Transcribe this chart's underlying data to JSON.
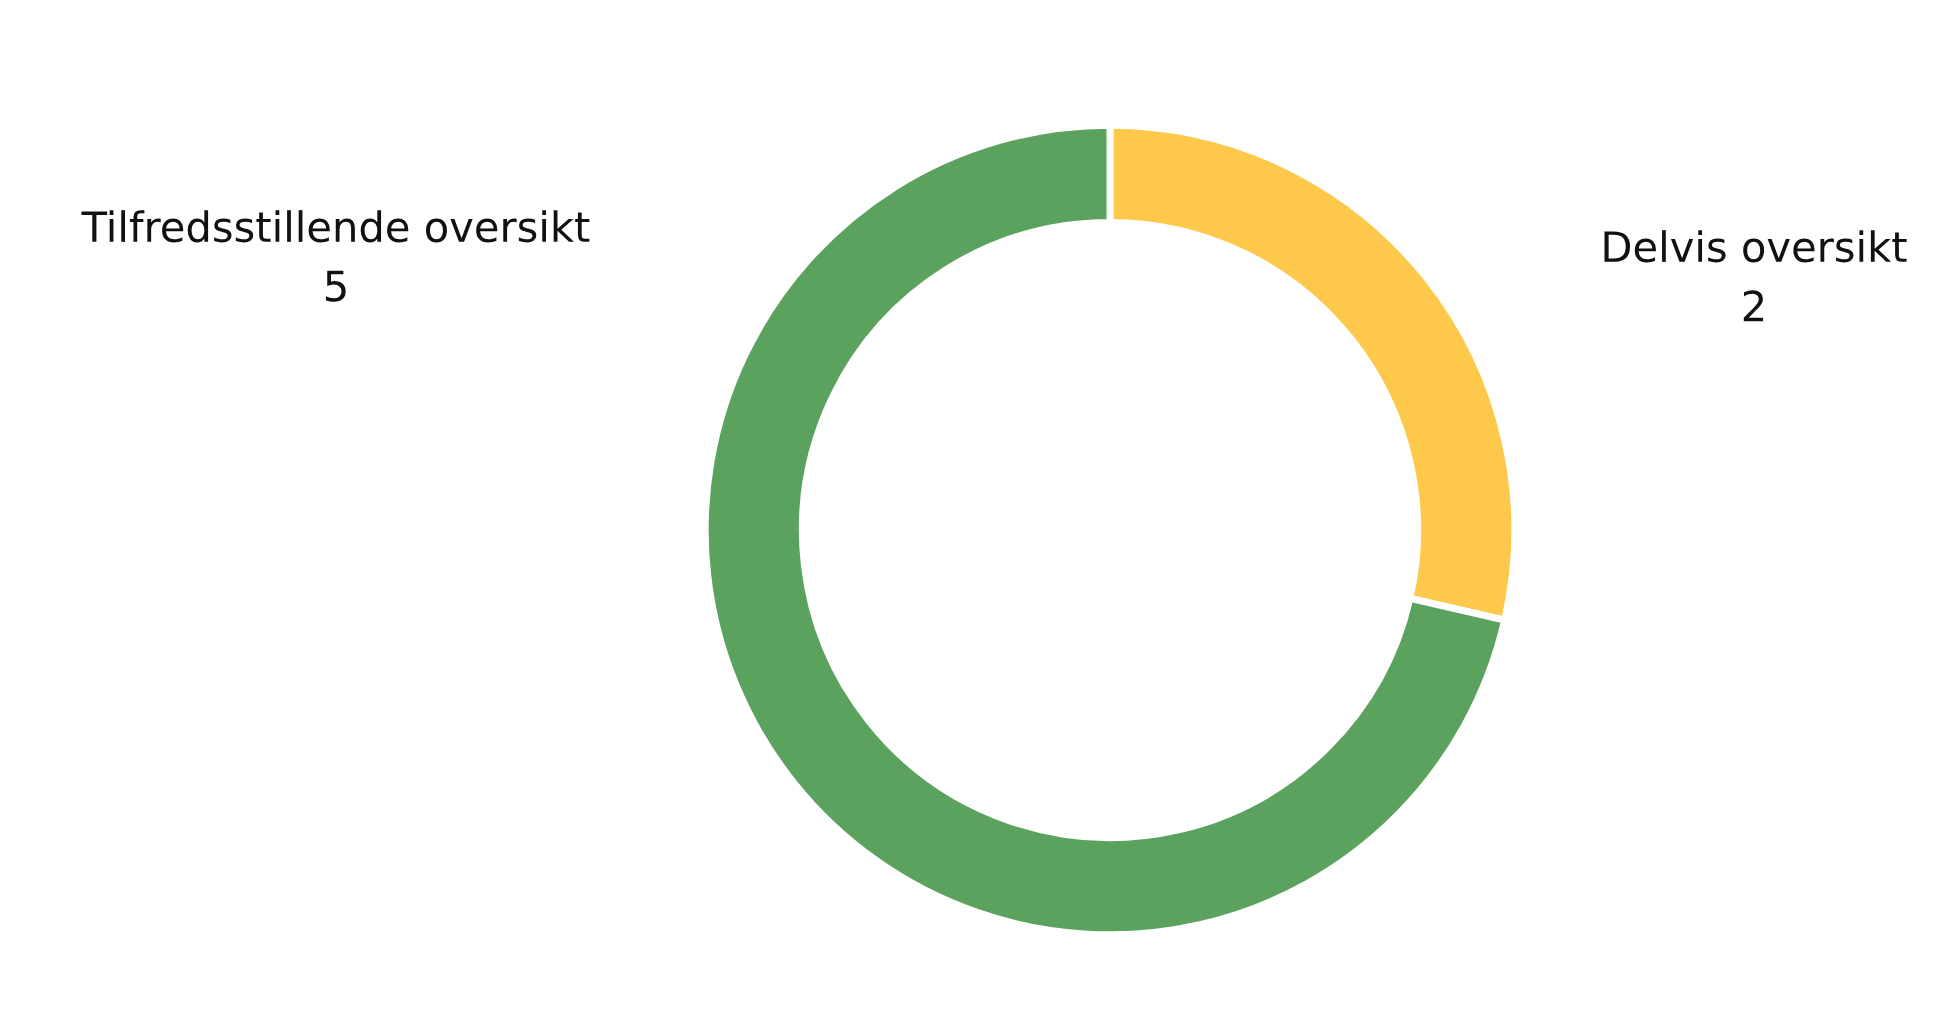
{
  "chart_data": {
    "type": "donut",
    "categories": [
      "Delvis oversikt",
      "Tilfredsstillende oversikt"
    ],
    "values": [
      2,
      5
    ],
    "colors": [
      "#fec94a",
      "#5aa25e"
    ],
    "data_labels": true,
    "legend": false
  }
}
